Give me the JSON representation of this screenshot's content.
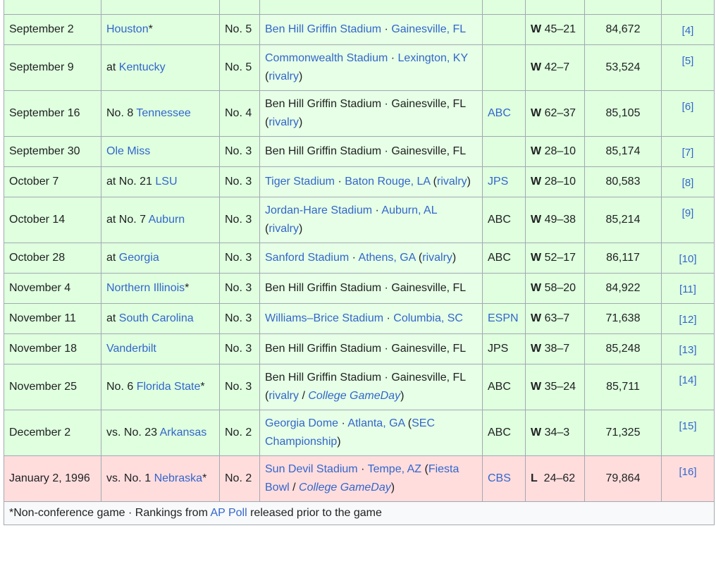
{
  "games": [
    {
      "date": "September 2",
      "opp_prefix": "",
      "opp": "Houston",
      "opp_suffix": "*",
      "rank": "No. 5",
      "site": {
        "stadium": "Ben Hill Griffin Stadium",
        "stadium_link": true,
        "city": "Gainesville, FL",
        "city_link": true,
        "extras": []
      },
      "tv": "",
      "tv_link": false,
      "res": "W",
      "score": "45–21",
      "att": "84,672",
      "ref": "[4]",
      "outcome": "win"
    },
    {
      "date": "September 9",
      "opp_prefix": "at ",
      "opp": "Kentucky",
      "opp_suffix": "",
      "rank": "No. 5",
      "site": {
        "stadium": "Commonwealth Stadium",
        "stadium_link": true,
        "city": "Lexington, KY",
        "city_link": true,
        "extras": [
          "rivalry"
        ]
      },
      "tv": "",
      "tv_link": false,
      "res": "W",
      "score": "42–7",
      "att": "53,524",
      "ref": "[5]",
      "outcome": "win"
    },
    {
      "date": "September 16",
      "opp_prefix": "No. 8 ",
      "opp": "Tennessee",
      "opp_suffix": "",
      "rank": "No. 4",
      "site": {
        "stadium": "Ben Hill Griffin Stadium",
        "stadium_link": false,
        "city": "Gainesville, FL",
        "city_link": false,
        "extras": [
          "rivalry"
        ]
      },
      "tv": "ABC",
      "tv_link": true,
      "res": "W",
      "score": "62–37",
      "att": "85,105",
      "ref": "[6]",
      "outcome": "win"
    },
    {
      "date": "September 30",
      "opp_prefix": "",
      "opp": "Ole Miss",
      "opp_suffix": "",
      "rank": "No. 3",
      "site": {
        "stadium": "Ben Hill Griffin Stadium",
        "stadium_link": false,
        "city": "Gainesville, FL",
        "city_link": false,
        "extras": []
      },
      "tv": "",
      "tv_link": false,
      "res": "W",
      "score": "28–10",
      "att": "85,174",
      "ref": "[7]",
      "outcome": "win"
    },
    {
      "date": "October 7",
      "opp_prefix": "at No. 21 ",
      "opp": "LSU",
      "opp_suffix": "",
      "rank": "No. 3",
      "site": {
        "stadium": "Tiger Stadium",
        "stadium_link": true,
        "city": "Baton Rouge, LA",
        "city_link": true,
        "extras": [
          "rivalry"
        ]
      },
      "tv": "JPS",
      "tv_link": true,
      "res": "W",
      "score": "28–10",
      "att": "80,583",
      "ref": "[8]",
      "outcome": "win"
    },
    {
      "date": "October 14",
      "opp_prefix": "at No. 7 ",
      "opp": "Auburn",
      "opp_suffix": "",
      "rank": "No. 3",
      "site": {
        "stadium": "Jordan-Hare Stadium",
        "stadium_link": true,
        "city": "Auburn, AL",
        "city_link": true,
        "extras": [
          "rivalry"
        ]
      },
      "tv": "ABC",
      "tv_link": false,
      "res": "W",
      "score": "49–38",
      "att": "85,214",
      "ref": "[9]",
      "outcome": "win"
    },
    {
      "date": "October 28",
      "opp_prefix": "at ",
      "opp": "Georgia",
      "opp_suffix": "",
      "rank": "No. 3",
      "site": {
        "stadium": "Sanford Stadium",
        "stadium_link": true,
        "city": "Athens, GA",
        "city_link": true,
        "extras": [
          "rivalry"
        ]
      },
      "tv": "ABC",
      "tv_link": false,
      "res": "W",
      "score": "52–17",
      "att": "86,117",
      "ref": "[10]",
      "outcome": "win"
    },
    {
      "date": "November 4",
      "opp_prefix": "",
      "opp": "Northern Illinois",
      "opp_suffix": "*",
      "rank": "No. 3",
      "site": {
        "stadium": "Ben Hill Griffin Stadium",
        "stadium_link": false,
        "city": "Gainesville, FL",
        "city_link": false,
        "extras": []
      },
      "tv": "",
      "tv_link": false,
      "res": "W",
      "score": "58–20",
      "att": "84,922",
      "ref": "[11]",
      "outcome": "win"
    },
    {
      "date": "November 11",
      "opp_prefix": "at ",
      "opp": "South Carolina",
      "opp_suffix": "",
      "rank": "No. 3",
      "site": {
        "stadium": "Williams–Brice Stadium",
        "stadium_link": true,
        "city": "Columbia, SC",
        "city_link": true,
        "extras": []
      },
      "tv": "ESPN",
      "tv_link": true,
      "res": "W",
      "score": "63–7",
      "att": "71,638",
      "ref": "[12]",
      "outcome": "win"
    },
    {
      "date": "November 18",
      "opp_prefix": "",
      "opp": "Vanderbilt",
      "opp_suffix": "",
      "rank": "No. 3",
      "site": {
        "stadium": "Ben Hill Griffin Stadium",
        "stadium_link": false,
        "city": "Gainesville, FL",
        "city_link": false,
        "extras": []
      },
      "tv": "JPS",
      "tv_link": false,
      "res": "W",
      "score": "38–7",
      "att": "85,248",
      "ref": "[13]",
      "outcome": "win"
    },
    {
      "date": "November 25",
      "opp_prefix": "No. 6 ",
      "opp": "Florida State",
      "opp_suffix": "*",
      "rank": "No. 3",
      "site": {
        "stadium": "Ben Hill Griffin Stadium",
        "stadium_link": false,
        "city": "Gainesville, FL",
        "city_link": false,
        "extras": [
          "rivalry",
          "College GameDay"
        ]
      },
      "tv": "ABC",
      "tv_link": false,
      "res": "W",
      "score": "35–24",
      "att": "85,711",
      "ref": "[14]",
      "outcome": "win"
    },
    {
      "date": "December 2",
      "opp_prefix": "vs. No. 23 ",
      "opp": "Arkansas",
      "opp_suffix": "",
      "rank": "No. 2",
      "site": {
        "stadium": "Georgia Dome",
        "stadium_link": true,
        "city": "Atlanta, GA",
        "city_link": true,
        "extras": [
          "SEC Championship"
        ]
      },
      "tv": "ABC",
      "tv_link": false,
      "res": "W",
      "score": "34–3",
      "att": "71,325",
      "ref": "[15]",
      "outcome": "win"
    },
    {
      "date": "January 2, 1996",
      "opp_prefix": "vs. No. 1 ",
      "opp": "Nebraska",
      "opp_suffix": "*",
      "rank": "No. 2",
      "site": {
        "stadium": "Sun Devil Stadium",
        "stadium_link": true,
        "city": "Tempe, AZ",
        "city_link": true,
        "extras": [
          "Fiesta Bowl",
          "College GameDay"
        ]
      },
      "tv": "CBS",
      "tv_link": true,
      "res": "L",
      "score": "24–62",
      "att": "79,864",
      "ref": "[16]",
      "outcome": "loss"
    }
  ],
  "footnote": {
    "prefix": "*Non-conference game · Rankings from ",
    "link": "AP Poll",
    "suffix": " released prior to the game"
  },
  "colors": {
    "win_row": "#dfffdf",
    "loss_row": "#ffdddd",
    "link": "#3366cc",
    "border": "#a2a9b1"
  }
}
